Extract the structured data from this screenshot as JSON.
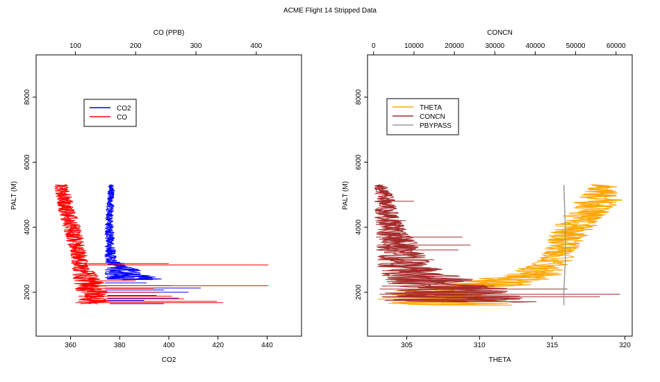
{
  "title": "ACME Flight  14  Stripped Data",
  "chart_data": [
    {
      "type": "line",
      "xlabel": "CO2",
      "x2label": "CO (PPB)",
      "ylabel": "PALT (M)",
      "xlim": [
        346,
        454
      ],
      "xticks": [
        360,
        380,
        400,
        420,
        440
      ],
      "x2lim": [
        35,
        475
      ],
      "x2ticks": [
        100,
        200,
        300,
        400
      ],
      "ylim": [
        650,
        9300
      ],
      "yticks": [
        2000,
        4000,
        6000,
        8000
      ],
      "legend": {
        "position": "upper-left",
        "entries": [
          "CO2",
          "CO"
        ]
      },
      "series": [
        {
          "name": "CO2",
          "axis": "bottom",
          "color": "#0000ff",
          "envelope": [
            [
              2380,
              374,
              398
            ],
            [
              2600,
              374,
              391
            ],
            [
              3000,
              374,
              379
            ],
            [
              3500,
              374,
              378
            ],
            [
              4000,
              374,
              377.5
            ],
            [
              4500,
              374.5,
              377.5
            ],
            [
              5000,
              375,
              378
            ],
            [
              5300,
              375.5,
              377.5
            ]
          ],
          "spikes": [
            [
              1650,
              376,
              398
            ],
            [
              1750,
              375,
              390
            ],
            [
              1820,
              375,
              404
            ],
            [
              1900,
              375,
              395
            ],
            [
              2000,
              375,
              408
            ],
            [
              2070,
              374,
              398
            ],
            [
              2130,
              374,
              413
            ],
            [
              2200,
              374,
              401
            ],
            [
              2290,
              374,
              391
            ],
            [
              2450,
              374,
              386
            ],
            [
              2550,
              374,
              384
            ]
          ]
        },
        {
          "name": "CO",
          "axis": "top",
          "color": "#ff0000",
          "envelope": [
            [
              1650,
              105,
              155
            ],
            [
              2000,
              100,
              160
            ],
            [
              2400,
              96,
              150
            ],
            [
              2800,
              94,
              125
            ],
            [
              3200,
              90,
              120
            ],
            [
              3600,
              84,
              115
            ],
            [
              4000,
              79,
              109
            ],
            [
              4500,
              72,
              100
            ],
            [
              5000,
              67,
              95
            ],
            [
              5300,
              65,
              88
            ]
          ],
          "spikes": [
            [
              1680,
              100,
              345
            ],
            [
              1720,
              105,
              335
            ],
            [
              1800,
              110,
              280
            ],
            [
              1880,
              105,
              260
            ],
            [
              2000,
              110,
              240
            ],
            [
              2120,
              100,
              230
            ],
            [
              2200,
              112,
              420
            ],
            [
              2350,
              105,
              200
            ],
            [
              2840,
              115,
              420
            ],
            [
              2880,
              100,
              255
            ]
          ]
        }
      ]
    },
    {
      "type": "line",
      "xlabel": "THETA",
      "x2label": "CONCN",
      "ylabel": "PALT (M)",
      "xlim": [
        302.3,
        320.5
      ],
      "xticks": [
        305,
        310,
        315,
        320
      ],
      "x2lim": [
        -1500,
        64000
      ],
      "x2ticks": [
        0,
        10000,
        20000,
        30000,
        40000,
        50000,
        60000
      ],
      "ylim": [
        650,
        9300
      ],
      "yticks": [
        2000,
        4000,
        6000,
        8000
      ],
      "legend": {
        "position": "upper-left",
        "entries": [
          "THETA",
          "CONCN",
          "PBYPASS"
        ]
      },
      "series": [
        {
          "name": "THETA",
          "axis": "bottom",
          "color": "#ffa500",
          "envelope": [
            [
              1600,
              302.6,
              312.5
            ],
            [
              1800,
              303.0,
              311.5
            ],
            [
              2000,
              303.5,
              309.5
            ],
            [
              2200,
              306.5,
              313.5
            ],
            [
              2400,
              309.0,
              315.0
            ],
            [
              2600,
              312.0,
              316.0
            ],
            [
              3000,
              314.0,
              316.5
            ],
            [
              3500,
              314.5,
              317.0
            ],
            [
              4000,
              315.0,
              318.0
            ],
            [
              4500,
              316.0,
              319.0
            ],
            [
              4800,
              316.5,
              320.0
            ],
            [
              5000,
              317.0,
              319.5
            ],
            [
              5300,
              317.5,
              319.5
            ]
          ]
        },
        {
          "name": "CONCN",
          "axis": "top",
          "color": "#a52a2a",
          "envelope": [
            [
              1700,
              1000,
              42000
            ],
            [
              1900,
              1200,
              36000
            ],
            [
              2200,
              1300,
              32000
            ],
            [
              2600,
              1000,
              18000
            ],
            [
              3000,
              800,
              14000
            ],
            [
              3500,
              500,
              11000
            ],
            [
              4000,
              300,
              8000
            ],
            [
              4500,
              200,
              6000
            ],
            [
              5000,
              100,
              5000
            ],
            [
              5300,
              100,
              3000
            ]
          ],
          "spikes": [
            [
              1860,
              2000,
              56000
            ],
            [
              1940,
              1500,
              61000
            ],
            [
              2100,
              1500,
              48000
            ],
            [
              2190,
              2000,
              30000
            ],
            [
              3000,
              1000,
              15000
            ],
            [
              3300,
              800,
              21000
            ],
            [
              3450,
              800,
              24000
            ],
            [
              3700,
              600,
              22000
            ],
            [
              4200,
              500,
              8000
            ],
            [
              4800,
              300,
              10000
            ]
          ]
        },
        {
          "name": "PBYPASS",
          "axis": "bottom",
          "color": "#999999",
          "points": [
            [
              315.8,
              1600
            ],
            [
              315.8,
              2000
            ],
            [
              315.9,
              3000
            ],
            [
              315.9,
              4000
            ],
            [
              315.8,
              5300
            ]
          ]
        }
      ]
    }
  ]
}
